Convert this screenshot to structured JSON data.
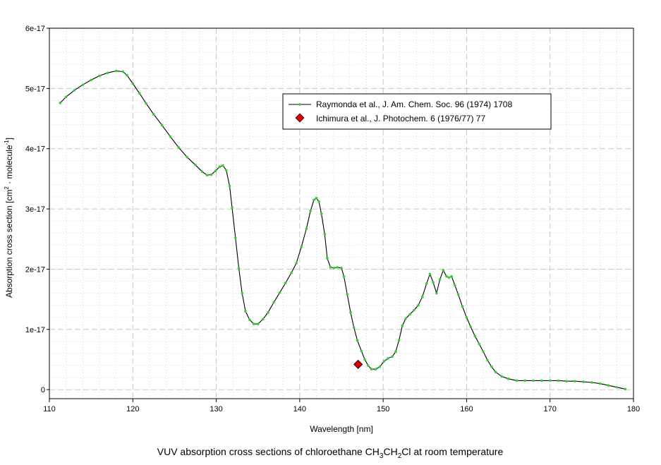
{
  "chart_data": {
    "type": "line",
    "title": "",
    "xlabel": "Wavelength [nm]",
    "ylabel": "Absorption cross section [cm² · molecule⁻¹]",
    "ylabel_parts": {
      "before": "Absorption cross section [cm",
      "sup1": "2",
      "middle": " · molecule",
      "sup2": "-1",
      "after": "]"
    },
    "caption_parts": {
      "before": "VUV absorption cross sections of chloroethane CH",
      "sub1": "3",
      "middle": "CH",
      "sub2": "2",
      "after": "Cl at room temperature"
    },
    "xlim": [
      110,
      180
    ],
    "ylim": [
      -1.5e-18,
      6e-17
    ],
    "x_ticks": [
      110,
      120,
      130,
      140,
      150,
      160,
      170,
      180
    ],
    "x_tick_labels": [
      "110",
      "120",
      "130",
      "140",
      "150",
      "160",
      "170",
      "180"
    ],
    "y_ticks": [
      0,
      1e-17,
      2e-17,
      3e-17,
      4e-17,
      5e-17,
      6e-17
    ],
    "y_tick_labels": [
      "0",
      "1e-17",
      "2e-17",
      "3e-17",
      "4e-17",
      "5e-17",
      "6e-17"
    ],
    "grid": true,
    "legend_position": "upper-right",
    "series": [
      {
        "name": "Raymonda et al., J. Am. Chem. Soc. 96 (1974) 1708",
        "style": "line",
        "color": "#000000",
        "marker_color": "#33cc33",
        "x": [
          111.3,
          112,
          113,
          114,
          115,
          116,
          117,
          118,
          118.8,
          119.3,
          120,
          120.8,
          121.6,
          122.5,
          123.5,
          124.5,
          125.5,
          126.5,
          127.5,
          128.3,
          128.9,
          129.4,
          129.9,
          130.4,
          130.8,
          131.2,
          131.6,
          131.9,
          132.3,
          132.7,
          133.1,
          133.5,
          134,
          134.5,
          135,
          135.6,
          136.2,
          136.9,
          137.6,
          138.3,
          139,
          139.6,
          140.2,
          140.8,
          141.3,
          141.7,
          142,
          142.3,
          142.6,
          143,
          143.3,
          143.7,
          144.1,
          144.5,
          145,
          145.3,
          145.7,
          146.1,
          146.5,
          146.9,
          147.4,
          147.8,
          148.2,
          148.6,
          149.1,
          149.6,
          150.1,
          150.6,
          151.1,
          151.5,
          151.9,
          152.3,
          152.7,
          153.2,
          153.7,
          154.2,
          154.7,
          155.2,
          155.6,
          156,
          156.4,
          156.8,
          157.2,
          157.6,
          157.9,
          158.2,
          158.6,
          159,
          159.5,
          160,
          160.5,
          161,
          161.5,
          162,
          162.5,
          163,
          163.5,
          164.2,
          165,
          166,
          167,
          168,
          169,
          170,
          171,
          172,
          173,
          174,
          175,
          176,
          177,
          178,
          179
        ],
        "y": [
          4.76e-17,
          4.86e-17,
          4.97e-17,
          5.06e-17,
          5.14e-17,
          5.21e-17,
          5.26e-17,
          5.29e-17,
          5.28e-17,
          5.22e-17,
          5.08e-17,
          4.92e-17,
          4.75e-17,
          4.57e-17,
          4.39e-17,
          4.2e-17,
          4.02e-17,
          3.86e-17,
          3.73e-17,
          3.62e-17,
          3.56e-17,
          3.57e-17,
          3.63e-17,
          3.7e-17,
          3.72e-17,
          3.64e-17,
          3.38e-17,
          3.02e-17,
          2.52e-17,
          2.02e-17,
          1.6e-17,
          1.3e-17,
          1.16e-17,
          1.09e-17,
          1.09e-17,
          1.17e-17,
          1.28e-17,
          1.45e-17,
          1.61e-17,
          1.77e-17,
          1.94e-17,
          2.1e-17,
          2.37e-17,
          2.67e-17,
          2.97e-17,
          3.15e-17,
          3.18e-17,
          3.12e-17,
          2.92e-17,
          2.58e-17,
          2.18e-17,
          2.03e-17,
          2.02e-17,
          2.03e-17,
          2.02e-17,
          1.88e-17,
          1.58e-17,
          1.28e-17,
          1.03e-17,
          8.2e-18,
          6.4e-18,
          5e-18,
          4e-18,
          3.4e-18,
          3.4e-18,
          3.8e-18,
          4.7e-18,
          5.2e-18,
          5.5e-18,
          6.3e-18,
          8.2e-18,
          1.06e-17,
          1.18e-17,
          1.25e-17,
          1.32e-17,
          1.4e-17,
          1.54e-17,
          1.76e-17,
          1.92e-17,
          1.78e-17,
          1.6e-17,
          1.83e-17,
          1.98e-17,
          1.88e-17,
          1.86e-17,
          1.88e-17,
          1.73e-17,
          1.58e-17,
          1.38e-17,
          1.2e-17,
          1.04e-17,
          8.9e-18,
          7.6e-18,
          6.3e-18,
          4.9e-18,
          3.8e-18,
          2.9e-18,
          2.2e-18,
          1.8e-18,
          1.5e-18,
          1.5e-18,
          1.5e-18,
          1.5e-18,
          1.5e-18,
          1.5e-18,
          1.4e-18,
          1.4e-18,
          1.3e-18,
          1.2e-18,
          1e-18,
          7e-19,
          4e-19,
          1e-19
        ]
      },
      {
        "name": "Ichimura et al., J. Photochem. 6 (1976/77) 77",
        "style": "marker",
        "color": "#dd0000",
        "x": [
          147
        ],
        "y": [
          4.2e-18
        ]
      }
    ]
  }
}
